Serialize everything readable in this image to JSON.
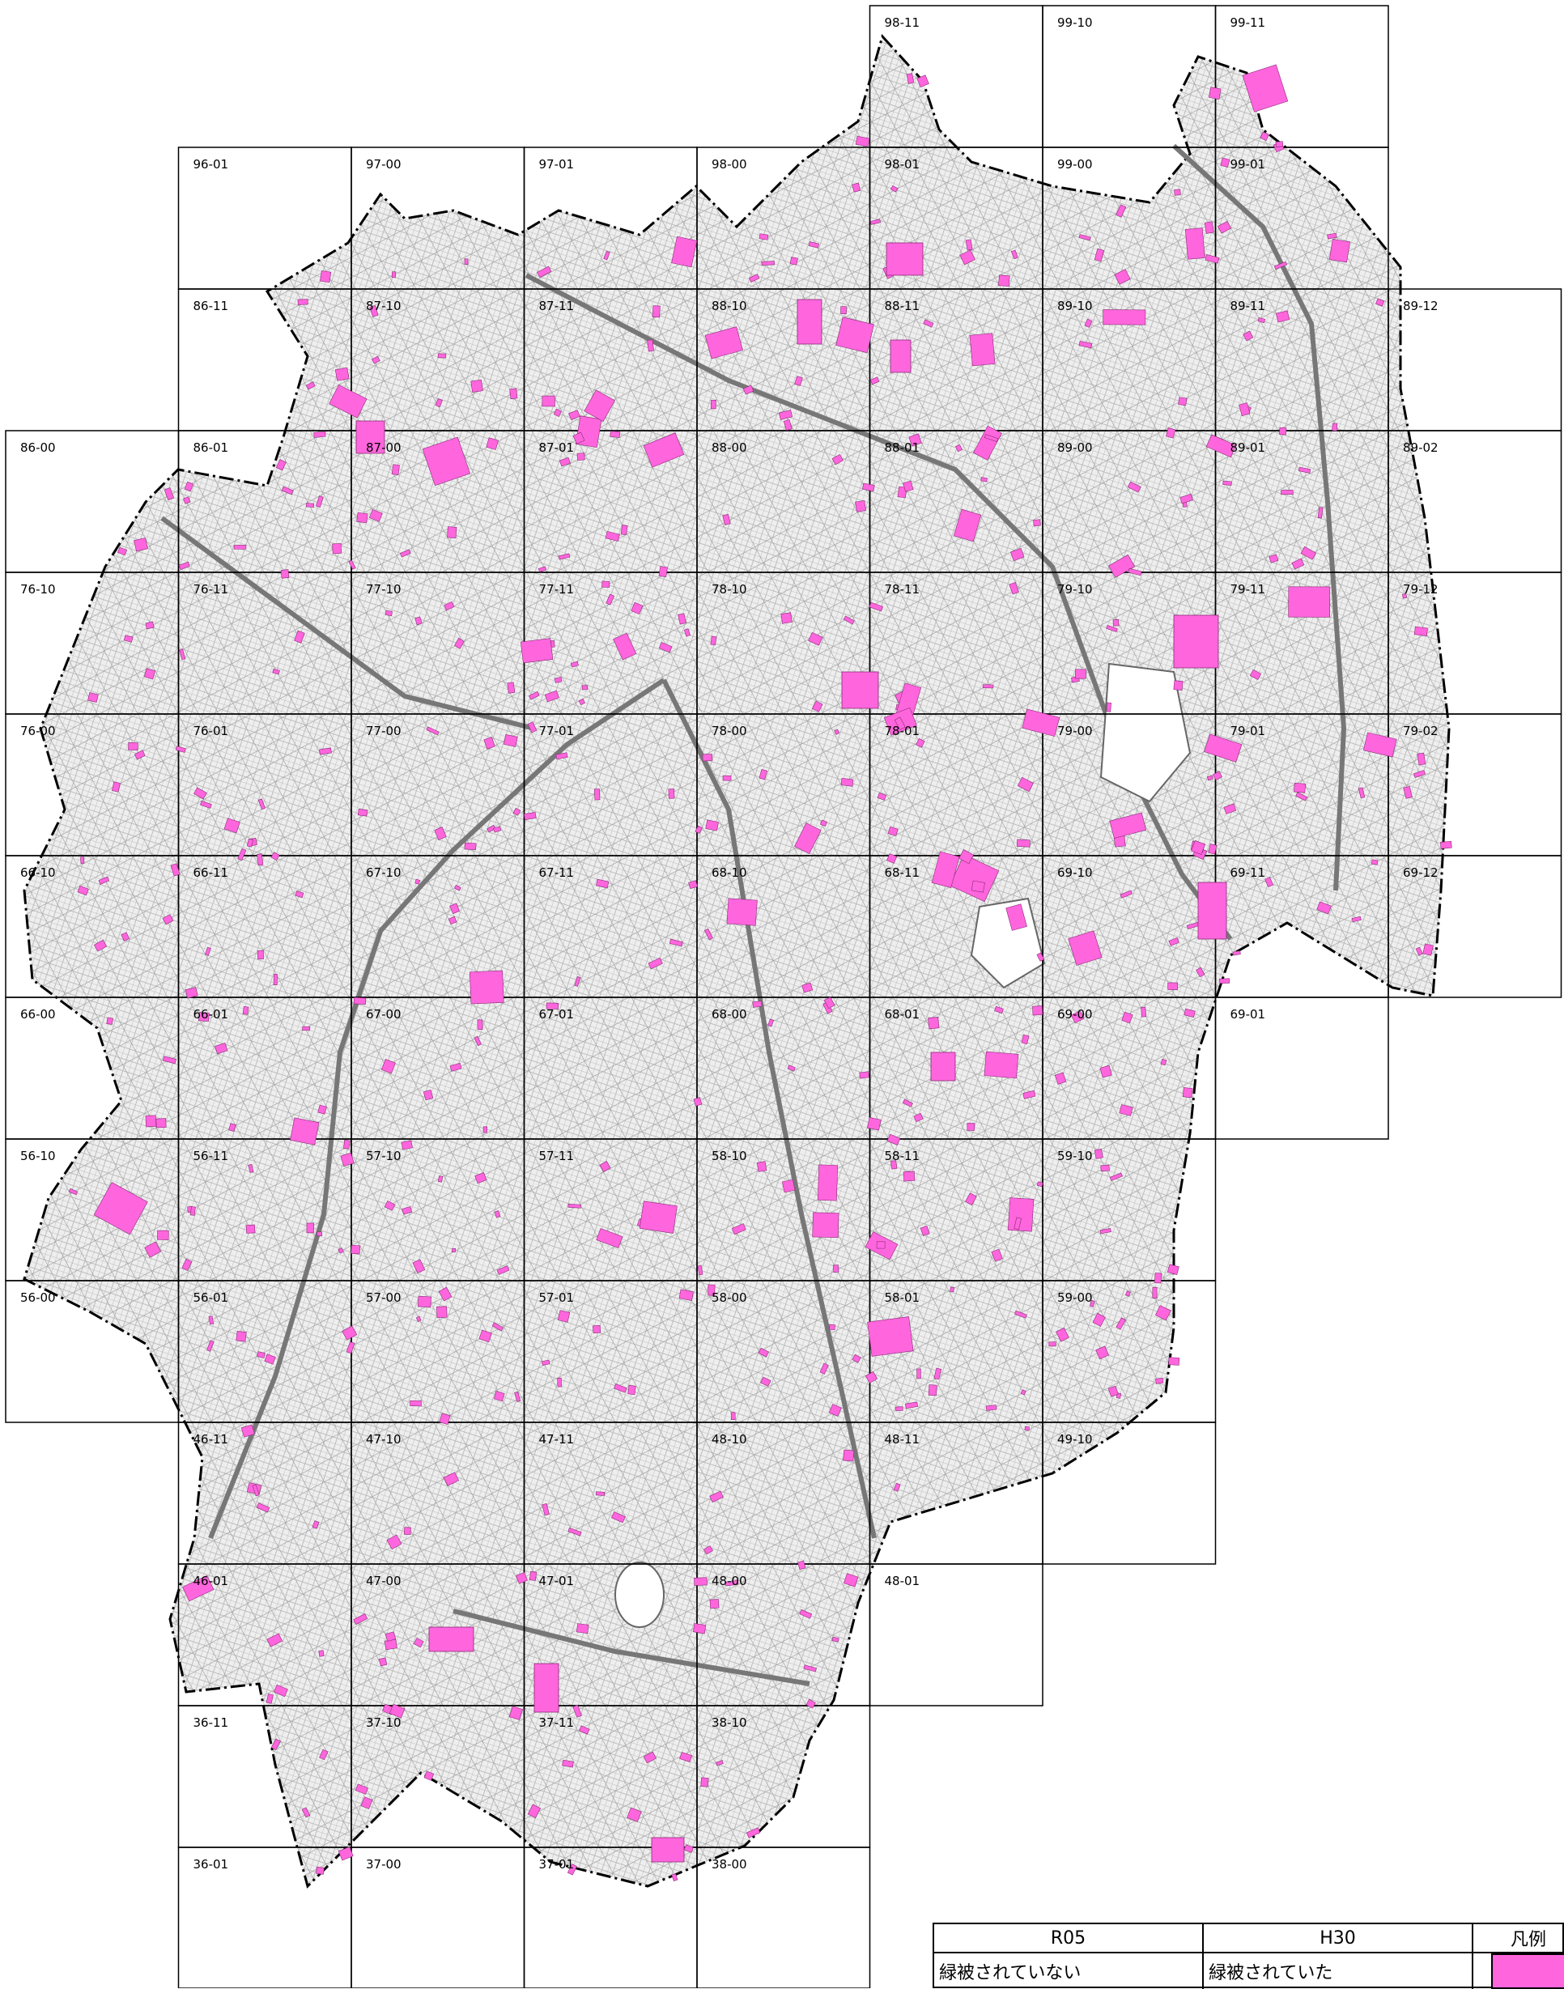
{
  "map": {
    "tiles": [
      "98-11",
      "99-10",
      "99-11",
      "96-01",
      "97-00",
      "97-01",
      "98-00",
      "98-01",
      "99-00",
      "99-01",
      "86-11",
      "87-10",
      "87-11",
      "88-10",
      "88-11",
      "89-10",
      "89-11",
      "89-12",
      "86-00",
      "86-01",
      "87-00",
      "87-01",
      "88-00",
      "88-01",
      "89-00",
      "89-01",
      "89-02",
      "76-10",
      "76-11",
      "77-10",
      "77-11",
      "78-10",
      "78-11",
      "79-10",
      "79-11",
      "79-12",
      "76-00",
      "76-01",
      "77-00",
      "77-01",
      "78-00",
      "78-01",
      "79-00",
      "79-01",
      "79-02",
      "66-10",
      "66-11",
      "67-10",
      "67-11",
      "68-10",
      "68-11",
      "69-10",
      "69-11",
      "69-12",
      "66-00",
      "66-01",
      "67-00",
      "67-01",
      "68-00",
      "68-01",
      "69-00",
      "69-01",
      "56-10",
      "56-11",
      "57-10",
      "57-11",
      "58-10",
      "58-11",
      "59-10",
      "56-00",
      "56-01",
      "57-00",
      "57-01",
      "58-00",
      "58-01",
      "59-00",
      "46-11",
      "47-10",
      "47-11",
      "48-10",
      "48-11",
      "49-10",
      "46-01",
      "47-00",
      "47-01",
      "48-00",
      "48-01",
      "36-11",
      "37-10",
      "37-11",
      "38-10",
      "36-01",
      "37-00",
      "37-01",
      "38-00"
    ],
    "colors": {
      "greenery_loss": "#ff66dd",
      "streets": "#a8a8a8",
      "grid_lines": "#000000",
      "boundary": "#000000"
    }
  },
  "legend": {
    "col1_header": "R05",
    "col2_header": "H30",
    "col3_header": "凡例",
    "col1_value": "緑被されていない",
    "col2_value": "緑被されていた",
    "swatch_color": "#ff66dd"
  }
}
